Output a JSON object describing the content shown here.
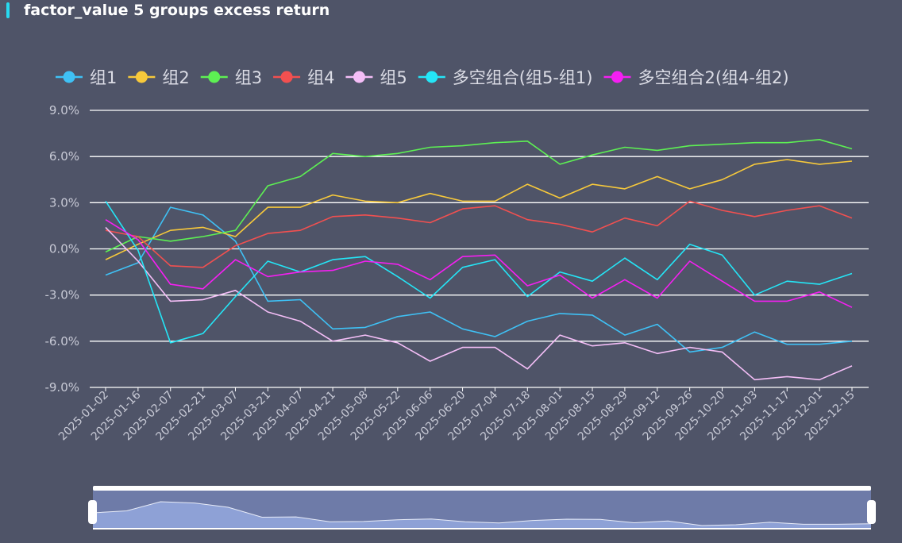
{
  "header": {
    "title": "factor_value 5 groups excess return"
  },
  "chart_data": {
    "type": "line",
    "title": "factor_value 5 groups excess return",
    "ylim": [
      -9,
      9
    ],
    "y_ticks": [
      "9.0%",
      "6.0%",
      "3.0%",
      "0.0%",
      "-3.0%",
      "-6.0%",
      "-9.0%"
    ],
    "grid": true,
    "legend_position": "top",
    "x": [
      "2025-01-02",
      "2025-01-16",
      "2025-02-07",
      "2025-02-21",
      "2025-03-07",
      "2025-03-21",
      "2025-04-07",
      "2025-04-21",
      "2025-05-08",
      "2025-05-22",
      "2025-06-06",
      "2025-06-20",
      "2025-07-04",
      "2025-07-18",
      "2025-08-01",
      "2025-08-15",
      "2025-08-29",
      "2025-09-12",
      "2025-09-26",
      "2025-10-20",
      "2025-11-03",
      "2025-11-17",
      "2025-12-01",
      "2025-12-15"
    ],
    "series": [
      {
        "name": "组1",
        "color": "#3fc1f5",
        "values": [
          -1.7,
          -0.9,
          2.7,
          2.2,
          0.5,
          -3.4,
          -3.3,
          -5.2,
          -5.1,
          -4.4,
          -4.1,
          -5.2,
          -5.7,
          -4.7,
          -4.2,
          -4.3,
          -5.6,
          -4.9,
          -6.7,
          -6.4,
          -5.4,
          -6.2,
          -6.2,
          -6.0
        ]
      },
      {
        "name": "组2",
        "color": "#f7c93b",
        "values": [
          -0.7,
          0.3,
          1.2,
          1.4,
          0.8,
          2.7,
          2.7,
          3.5,
          3.1,
          3.0,
          3.6,
          3.1,
          3.1,
          4.2,
          3.3,
          4.2,
          3.9,
          4.7,
          3.9,
          4.5,
          5.5,
          5.8,
          5.5,
          5.7
        ]
      },
      {
        "name": "组3",
        "color": "#5df053",
        "values": [
          -0.2,
          0.8,
          0.5,
          0.8,
          1.2,
          4.1,
          4.7,
          6.2,
          6.0,
          6.2,
          6.6,
          6.7,
          6.9,
          7.0,
          5.5,
          6.1,
          6.6,
          6.4,
          6.7,
          6.8,
          6.9,
          6.9,
          7.1,
          6.5
        ]
      },
      {
        "name": "组4",
        "color": "#f25050",
        "values": [
          1.2,
          0.8,
          -1.1,
          -1.2,
          0.2,
          1.0,
          1.2,
          2.1,
          2.2,
          2.0,
          1.7,
          2.6,
          2.8,
          1.9,
          1.6,
          1.1,
          2.0,
          1.5,
          3.1,
          2.5,
          2.1,
          2.5,
          2.8,
          2.0
        ]
      },
      {
        "name": "组5",
        "color": "#f4bef7",
        "values": [
          1.4,
          -0.8,
          -3.4,
          -3.3,
          -2.7,
          -4.1,
          -4.7,
          -6.0,
          -5.6,
          -6.1,
          -7.3,
          -6.4,
          -6.4,
          -7.8,
          -5.6,
          -6.3,
          -6.1,
          -6.8,
          -6.4,
          -6.7,
          -8.5,
          -8.3,
          -8.5,
          -7.6
        ]
      },
      {
        "name": "多空组合(组5-组1)",
        "color": "#24e6f7",
        "values": [
          3.1,
          -0.1,
          -6.1,
          -5.5,
          -3.1,
          -0.8,
          -1.5,
          -0.7,
          -0.5,
          -1.8,
          -3.2,
          -1.2,
          -0.7,
          -3.1,
          -1.5,
          -2.1,
          -0.6,
          -2.0,
          0.3,
          -0.4,
          -3.0,
          -2.1,
          -2.3,
          -1.6
        ]
      },
      {
        "name": "多空组合2(组4-组2)",
        "color": "#f51ff2",
        "values": [
          1.9,
          0.6,
          -2.3,
          -2.6,
          -0.7,
          -1.8,
          -1.5,
          -1.4,
          -0.8,
          -1.0,
          -2.0,
          -0.5,
          -0.4,
          -2.4,
          -1.7,
          -3.2,
          -2.0,
          -3.2,
          -0.8,
          -2.1,
          -3.4,
          -3.4,
          -2.8,
          -3.8
        ]
      }
    ]
  }
}
